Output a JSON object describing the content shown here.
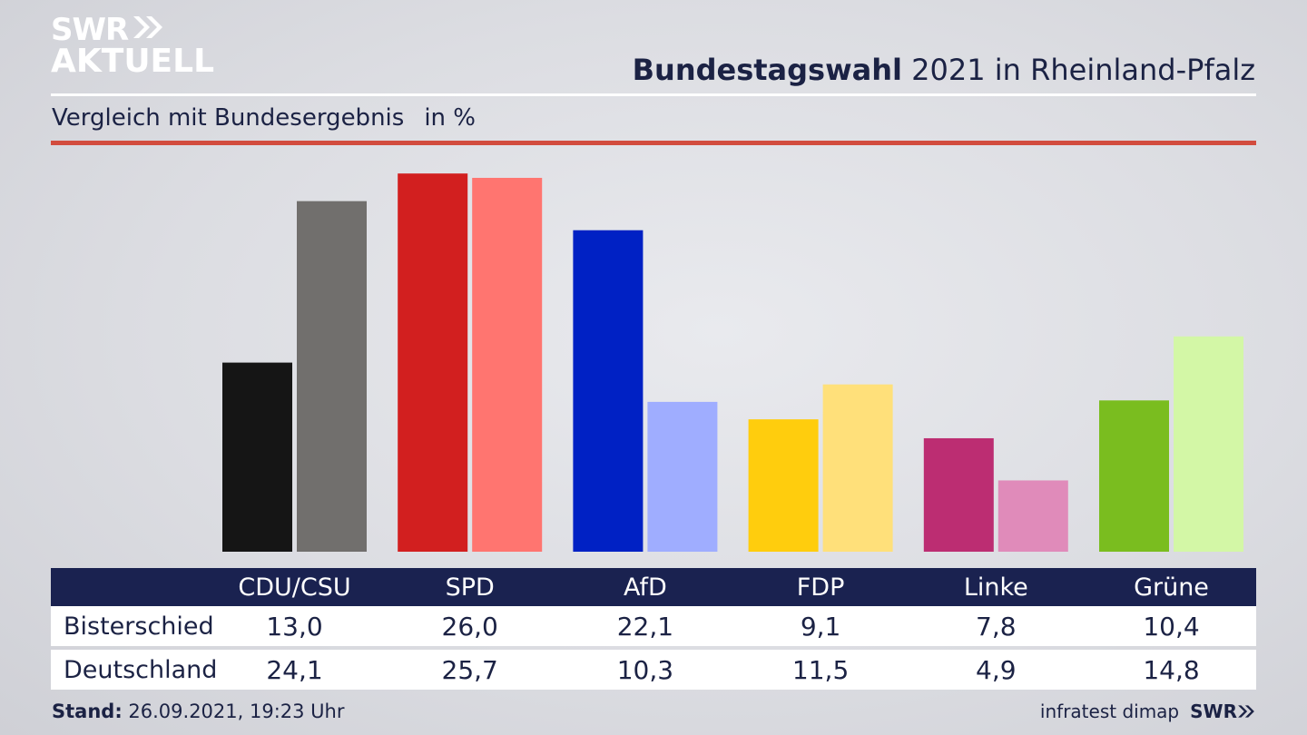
{
  "brand": {
    "line1": "SWR",
    "line2": "AKTUELL",
    "footer_logo": "SWR"
  },
  "header": {
    "title_bold": "Bundestagswahl",
    "title_rest": " 2021 in Rheinland-Pfalz"
  },
  "subtitle": {
    "text": "Vergleich mit Bundesergebnis",
    "unit": "in %"
  },
  "footer": {
    "stand_label": "Stand:",
    "stand_value": " 26.09.2021, 19:23 Uhr",
    "source": "infratest dimap"
  },
  "colors": {
    "navy": "#1a2250",
    "red_rule": "#d24c3e"
  },
  "chart_data": {
    "type": "bar",
    "categories": [
      "CDU/CSU",
      "SPD",
      "AfD",
      "FDP",
      "Linke",
      "Grüne"
    ],
    "series": [
      {
        "name": "Bisterschied",
        "values": [
          13.0,
          26.0,
          22.1,
          9.1,
          7.8,
          10.4
        ],
        "colors": [
          "#151515",
          "#d21f1f",
          "#0021c4",
          "#ffcd0d",
          "#bc2d72",
          "#7abd1f"
        ]
      },
      {
        "name": "Deutschland",
        "values": [
          24.1,
          25.7,
          10.3,
          11.5,
          4.9,
          14.8
        ],
        "colors": [
          "#716f6d",
          "#ff7570",
          "#9fadff",
          "#ffe07a",
          "#e08bba",
          "#d3f7a6"
        ]
      }
    ],
    "value_labels": [
      [
        "13,0",
        "26,0",
        "22,1",
        "9,1",
        "7,8",
        "10,4"
      ],
      [
        "24,1",
        "25,7",
        "10,3",
        "11,5",
        "4,9",
        "14,8"
      ]
    ],
    "ylim": [
      0,
      26.2
    ]
  }
}
